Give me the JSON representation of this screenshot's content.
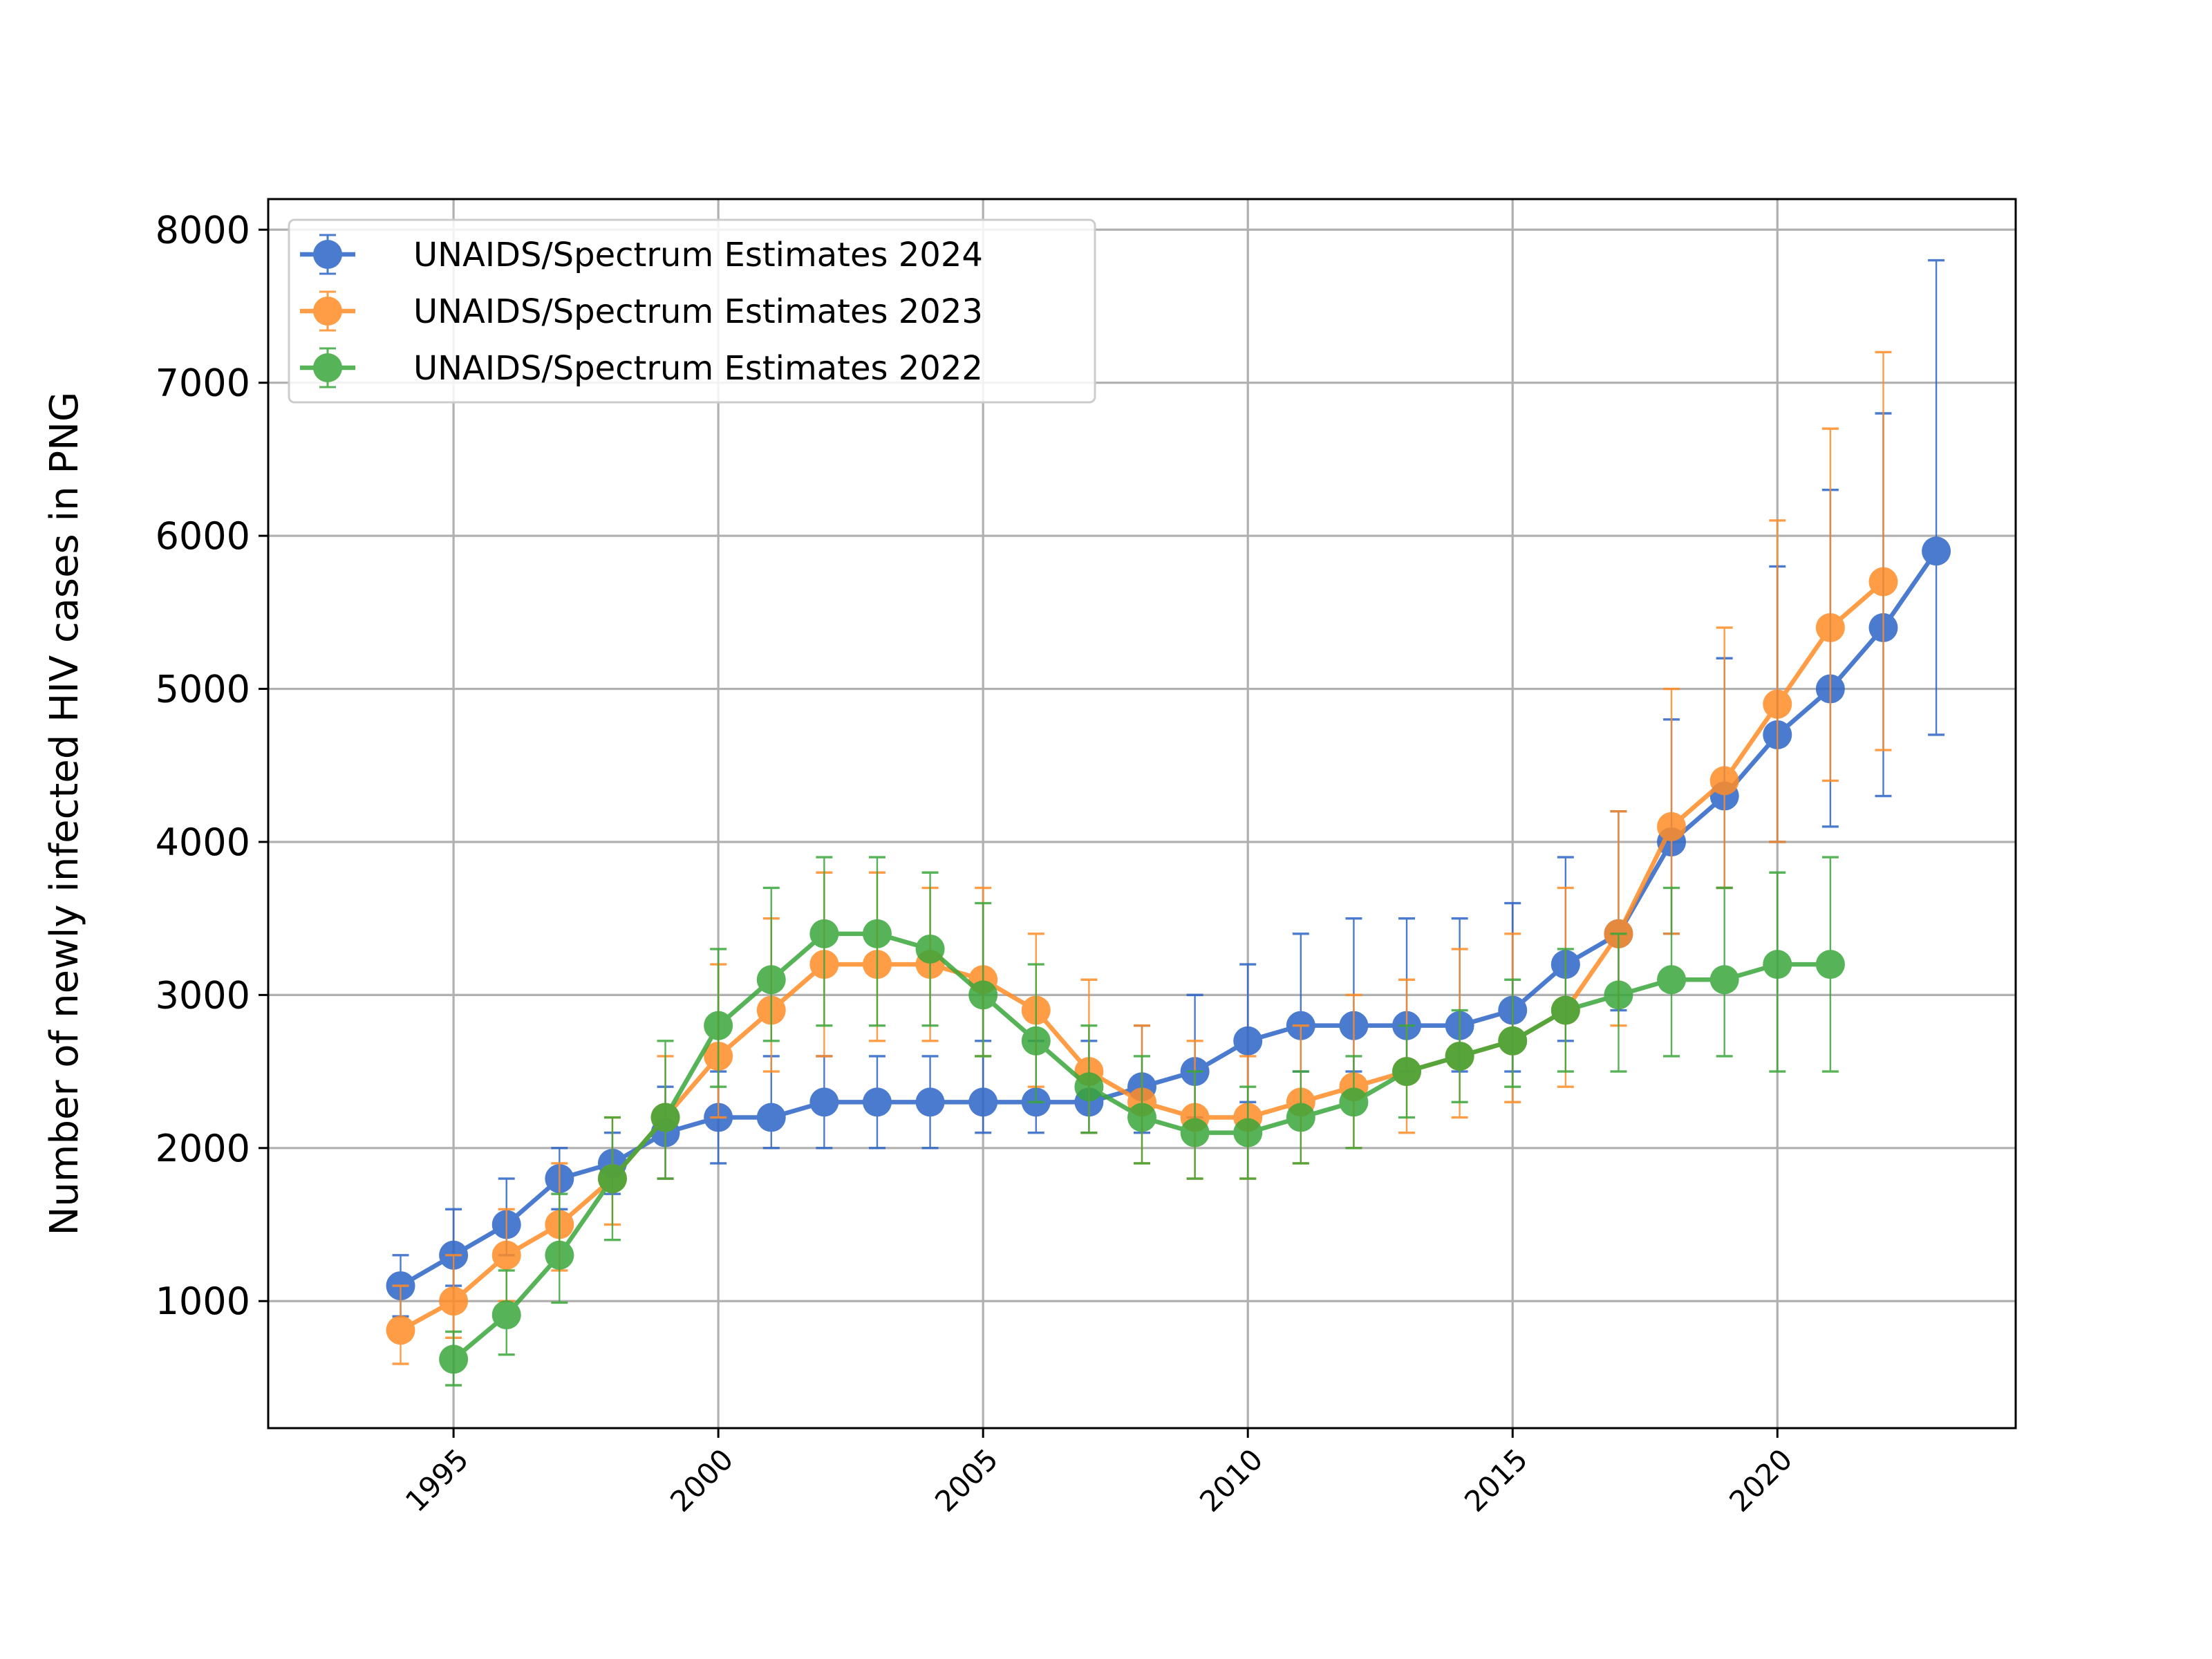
{
  "chart_data": {
    "type": "line",
    "title": "",
    "xlabel": "",
    "ylabel": "Number of newly infected HIV cases in PNG",
    "xlim": [
      1991.5,
      2024.5
    ],
    "ylim": [
      170,
      8200
    ],
    "xticks": [
      1995,
      2000,
      2005,
      2010,
      2015,
      2020
    ],
    "yticks": [
      1000,
      2000,
      3000,
      4000,
      5000,
      6000,
      7000,
      8000
    ],
    "grid": true,
    "legend_position": "top-left",
    "error_bars": true,
    "series": [
      {
        "name": "UNAIDS/Spectrum Estimates 2024",
        "color": "#2c64c6",
        "x": [
          1994,
          1995,
          1996,
          1997,
          1998,
          1999,
          2000,
          2001,
          2002,
          2003,
          2004,
          2005,
          2006,
          2007,
          2008,
          2009,
          2010,
          2011,
          2012,
          2013,
          2014,
          2015,
          2016,
          2017,
          2018,
          2019,
          2020,
          2021,
          2022,
          2023
        ],
        "y": [
          1100,
          1300,
          1500,
          1800,
          1900,
          2100,
          2200,
          2200,
          2300,
          2300,
          2300,
          2300,
          2300,
          2300,
          2400,
          2500,
          2700,
          2800,
          2800,
          2800,
          2800,
          2900,
          3200,
          3400,
          4000,
          4300,
          4700,
          5000,
          5400,
          5900
        ],
        "lower": [
          900,
          1100,
          1300,
          1600,
          1700,
          1800,
          1900,
          2000,
          2000,
          2000,
          2000,
          2100,
          2100,
          2100,
          2100,
          2200,
          2300,
          2500,
          2500,
          2500,
          2500,
          2500,
          2700,
          2900,
          3400,
          3700,
          4000,
          4100,
          4300,
          4700
        ],
        "upper": [
          1300,
          1600,
          1800,
          2000,
          2100,
          2400,
          2500,
          2600,
          2600,
          2600,
          2600,
          2700,
          2700,
          2700,
          2800,
          3000,
          3200,
          3400,
          3500,
          3500,
          3500,
          3600,
          3900,
          4200,
          4800,
          5200,
          5800,
          6300,
          6800,
          7800
        ]
      },
      {
        "name": "UNAIDS/Spectrum Estimates 2023",
        "color": "#ff8c26",
        "x": [
          1994,
          1995,
          1996,
          1997,
          1998,
          1999,
          2000,
          2001,
          2002,
          2003,
          2004,
          2005,
          2006,
          2007,
          2008,
          2009,
          2010,
          2011,
          2012,
          2013,
          2014,
          2015,
          2016,
          2017,
          2018,
          2019,
          2020,
          2021,
          2022
        ],
        "y": [
          810,
          1000,
          1300,
          1500,
          1800,
          2200,
          2600,
          2900,
          3200,
          3200,
          3200,
          3100,
          2900,
          2500,
          2300,
          2200,
          2200,
          2300,
          2400,
          2500,
          2600,
          2700,
          2900,
          3400,
          4100,
          4400,
          4900,
          5400,
          5700
        ],
        "lower": [
          590,
          760,
          1000,
          1200,
          1500,
          1800,
          2200,
          2500,
          2600,
          2700,
          2700,
          2600,
          2400,
          2100,
          1900,
          1800,
          1800,
          1900,
          2000,
          2100,
          2200,
          2300,
          2400,
          2800,
          3400,
          3700,
          4000,
          4400,
          4600
        ],
        "upper": [
          1100,
          1300,
          1600,
          1900,
          2200,
          2600,
          3200,
          3500,
          3800,
          3800,
          3700,
          3700,
          3400,
          3100,
          2800,
          2700,
          2600,
          2800,
          3000,
          3100,
          3300,
          3400,
          3700,
          4200,
          5000,
          5400,
          6100,
          6700,
          7200
        ]
      },
      {
        "name": "UNAIDS/Spectrum Estimates 2022",
        "color": "#3aa63a",
        "x": [
          1995,
          1996,
          1997,
          1998,
          1999,
          2000,
          2001,
          2002,
          2003,
          2004,
          2005,
          2006,
          2007,
          2008,
          2009,
          2010,
          2011,
          2012,
          2013,
          2014,
          2015,
          2016,
          2017,
          2018,
          2019,
          2020,
          2021
        ],
        "y": [
          620,
          910,
          1300,
          1800,
          2200,
          2800,
          3100,
          3400,
          3400,
          3300,
          3000,
          2700,
          2400,
          2200,
          2100,
          2100,
          2200,
          2300,
          2500,
          2600,
          2700,
          2900,
          3000,
          3100,
          3100,
          3200,
          3200
        ],
        "lower": [
          450,
          650,
          990,
          1400,
          1800,
          2400,
          2700,
          2800,
          2800,
          2800,
          2600,
          2300,
          2100,
          1900,
          1800,
          1800,
          1900,
          2000,
          2200,
          2300,
          2400,
          2500,
          2500,
          2600,
          2600,
          2500,
          2500
        ],
        "upper": [
          800,
          1200,
          1700,
          2200,
          2700,
          3300,
          3700,
          3900,
          3900,
          3800,
          3600,
          3200,
          2800,
          2600,
          2500,
          2400,
          2500,
          2600,
          2800,
          2900,
          3100,
          3300,
          3400,
          3700,
          3700,
          3800,
          3900
        ]
      }
    ]
  }
}
